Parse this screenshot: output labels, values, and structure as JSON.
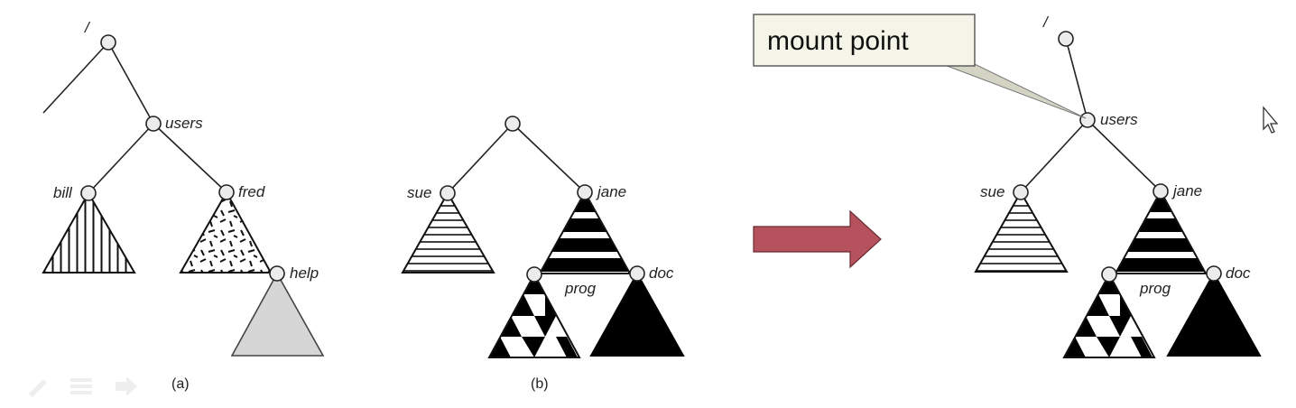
{
  "tree_a": {
    "root_label": "/",
    "users_label": "users",
    "bill_label": "bill",
    "fred_label": "fred",
    "help_label": "help",
    "caption": "(a)"
  },
  "tree_b": {
    "sue_label": "sue",
    "jane_label": "jane",
    "prog_label": "prog",
    "doc_label": "doc",
    "caption": "(b)"
  },
  "tree_merged": {
    "root_label": "/",
    "users_label": "users",
    "sue_label": "sue",
    "jane_label": "jane",
    "prog_label": "prog",
    "doc_label": "doc"
  },
  "callout": {
    "text": "mount point"
  },
  "arrow": {
    "color": "#b5525e"
  },
  "icons": {
    "cursor": "cursor-arrow-icon",
    "controls": [
      "pen-icon",
      "menu-icon",
      "forward-arrow-icon"
    ]
  }
}
